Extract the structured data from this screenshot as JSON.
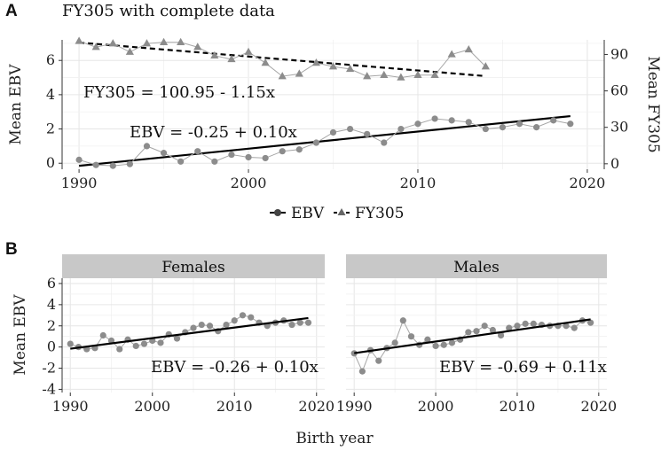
{
  "panel_A": {
    "label": "A",
    "title": "FY305 with complete data",
    "equation_fy": "FY305 = 100.95 - 1.15x",
    "equation_ebv": "EBV = -0.25 + 0.10x",
    "y_left_label": "Mean EBV",
    "y_right_label": "Mean FY305",
    "x_ticks": [
      "1990",
      "2000",
      "2010",
      "2020"
    ],
    "y_left_ticks": [
      "0",
      "2",
      "4",
      "6"
    ],
    "y_right_ticks": [
      "0",
      "30",
      "60",
      "90"
    ],
    "legend": {
      "ebv": "EBV",
      "fy": "FY305"
    }
  },
  "panel_B": {
    "label": "B",
    "y_label": "Mean EBV",
    "x_label": "Birth year",
    "x_ticks": [
      "1990",
      "2000",
      "2010",
      "2020"
    ],
    "y_ticks": [
      "-4",
      "-2",
      "0",
      "2",
      "4",
      "6"
    ],
    "females": {
      "strip": "Females",
      "equation": "EBV = -0.26 + 0.10x"
    },
    "males": {
      "strip": "Males",
      "equation": "EBV = -0.69 + 0.11x"
    }
  },
  "colors": {
    "points": "#8c8c8c",
    "point_line": "#a6a6a6",
    "trend": "#000000",
    "strip_bg": "#c8c8c8"
  },
  "chart_data": [
    {
      "type": "line",
      "panel": "A",
      "title": "FY305 with complete data",
      "xlabel": "",
      "ylabel": "Mean EBV",
      "y2label": "Mean FY305",
      "xlim": [
        1989,
        2021
      ],
      "ylim": [
        -0.35,
        7.2
      ],
      "y2lim": [
        -4.5,
        102
      ],
      "series": [
        {
          "name": "EBV",
          "axis": "left",
          "marker": "circle",
          "x": [
            1990,
            1991,
            1992,
            1993,
            1994,
            1995,
            1996,
            1997,
            1998,
            1999,
            2000,
            2001,
            2002,
            2003,
            2004,
            2005,
            2006,
            2007,
            2008,
            2009,
            2010,
            2011,
            2012,
            2013,
            2014,
            2015,
            2016,
            2017,
            2018,
            2019
          ],
          "values": [
            0.2,
            -0.1,
            -0.15,
            -0.05,
            1.0,
            0.6,
            0.1,
            0.7,
            0.1,
            0.5,
            0.35,
            0.3,
            0.7,
            0.8,
            1.2,
            1.8,
            2.0,
            1.7,
            1.2,
            2.0,
            2.3,
            2.6,
            2.5,
            2.4,
            2.0,
            2.1,
            2.3,
            2.1,
            2.5,
            2.3
          ]
        },
        {
          "name": "FY305",
          "axis": "right",
          "marker": "triangle",
          "x": [
            1990,
            1991,
            1992,
            1993,
            1994,
            1995,
            1996,
            1997,
            1998,
            1999,
            2000,
            2001,
            2002,
            2003,
            2004,
            2005,
            2006,
            2007,
            2008,
            2009,
            2010,
            2011,
            2012,
            2013,
            2014
          ],
          "values": [
            101,
            96,
            99,
            92,
            99,
            100,
            100,
            96,
            89,
            86,
            92,
            83,
            72,
            74,
            83,
            80,
            78,
            72,
            73,
            71,
            73,
            73,
            90,
            94,
            80
          ]
        }
      ],
      "trendlines": [
        {
          "name": "EBV",
          "axis": "left",
          "intercept": -0.25,
          "slope": 0.1,
          "x_start": 1990,
          "x_end": 2019,
          "style": "solid"
        },
        {
          "name": "FY305",
          "axis": "right",
          "intercept": 100.95,
          "slope": -1.15,
          "x_start": 1990,
          "x_end": 2014,
          "style": "dashed"
        }
      ],
      "legend": [
        "EBV",
        "FY305"
      ]
    },
    {
      "type": "line",
      "panel": "B",
      "facet": "Females",
      "xlabel": "Birth year",
      "ylabel": "Mean EBV",
      "xlim": [
        1989,
        2021
      ],
      "ylim": [
        -4.3,
        6.5
      ],
      "series": [
        {
          "name": "EBV",
          "x": [
            1990,
            1991,
            1992,
            1993,
            1994,
            1995,
            1996,
            1997,
            1998,
            1999,
            2000,
            2001,
            2002,
            2003,
            2004,
            2005,
            2006,
            2007,
            2008,
            2009,
            2010,
            2011,
            2012,
            2013,
            2014,
            2015,
            2016,
            2017,
            2018,
            2019
          ],
          "values": [
            0.3,
            0.0,
            -0.2,
            -0.1,
            1.1,
            0.6,
            -0.2,
            0.7,
            0.1,
            0.3,
            0.6,
            0.4,
            1.2,
            0.8,
            1.4,
            1.8,
            2.1,
            2.0,
            1.5,
            2.1,
            2.5,
            3.0,
            2.8,
            2.3,
            2.0,
            2.3,
            2.5,
            2.1,
            2.3,
            2.3
          ]
        }
      ],
      "trendline": {
        "intercept": -0.26,
        "slope": 0.1,
        "x_start": 1990,
        "x_end": 2019
      }
    },
    {
      "type": "line",
      "panel": "B",
      "facet": "Males",
      "xlabel": "Birth year",
      "ylabel": "Mean EBV",
      "xlim": [
        1989,
        2021
      ],
      "ylim": [
        -4.3,
        6.5
      ],
      "series": [
        {
          "name": "EBV",
          "x": [
            1990,
            1991,
            1992,
            1993,
            1994,
            1995,
            1996,
            1997,
            1998,
            1999,
            2000,
            2001,
            2002,
            2003,
            2004,
            2005,
            2006,
            2007,
            2008,
            2009,
            2010,
            2011,
            2012,
            2013,
            2014,
            2015,
            2016,
            2017,
            2018,
            2019
          ],
          "values": [
            -0.6,
            -2.3,
            -0.3,
            -1.3,
            -0.1,
            0.4,
            2.5,
            1.0,
            0.2,
            0.7,
            0.1,
            0.2,
            0.4,
            0.7,
            1.4,
            1.5,
            2.0,
            1.6,
            1.1,
            1.8,
            2.0,
            2.2,
            2.2,
            2.1,
            2.0,
            2.0,
            2.0,
            1.8,
            2.5,
            2.3
          ]
        }
      ],
      "trendline": {
        "intercept": -0.69,
        "slope": 0.11,
        "x_start": 1990,
        "x_end": 2019
      }
    }
  ]
}
